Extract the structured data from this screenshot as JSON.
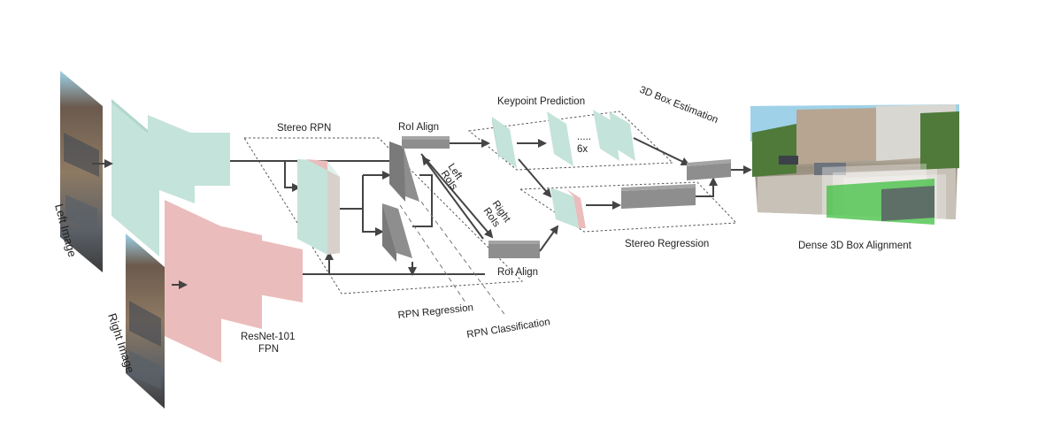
{
  "labels": {
    "left_image": "Left Image",
    "right_image": "Right Image",
    "backbone_line1": "ResNet-101",
    "backbone_line2": "FPN",
    "stereo_rpn": "Stereo RPN",
    "roi_align_top": "RoI Align",
    "roi_align_bottom": "RoI Align",
    "left_rois_line1": "Left",
    "left_rois_line2": "RoIs",
    "right_rois_line1": "Right",
    "right_rois_line2": "RoIs",
    "keypoint_prediction": "Keypoint Prediction",
    "repeat_count": "6x",
    "box_estimation": "3D Box Estimation",
    "stereo_regression": "Stereo Regression",
    "rpn_regression": "RPN Regression",
    "rpn_classification": "RPN Classification",
    "dense_alignment": "Dense 3D Box Alignment"
  },
  "colors": {
    "left_feature": "#c4e3da",
    "right_feature": "#ebbcbc",
    "roi_block": "#8e8e8e",
    "arrow": "#444444",
    "sky": "#9fd2e8",
    "road": "#b9b3a8",
    "overlay_green": "#3fbf3f"
  }
}
